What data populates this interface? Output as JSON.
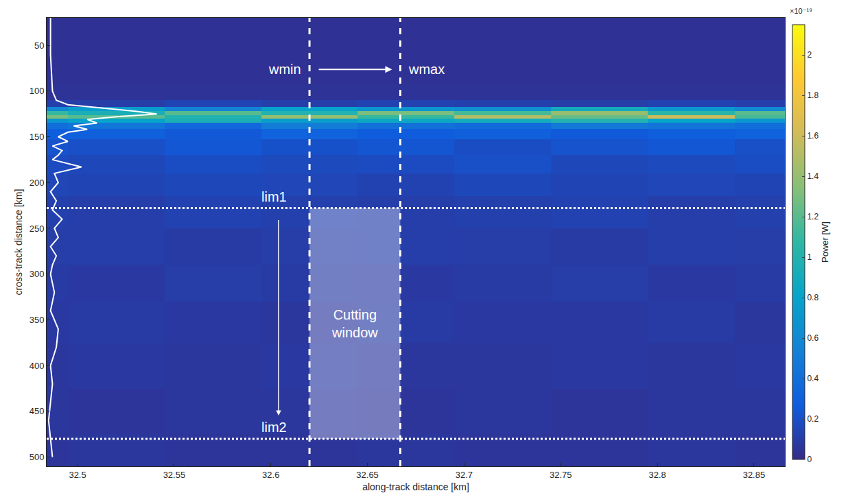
{
  "chart_data": {
    "type": "heatmap",
    "x_label": "along-track distance [km]",
    "y_label": "cross-track distance [km]",
    "xlim": [
      32.484,
      32.866
    ],
    "xticks": [
      32.5,
      32.55,
      32.6,
      32.65,
      32.7,
      32.75,
      32.8,
      32.85
    ],
    "ylim": [
      510,
      20
    ],
    "yticks": [
      50,
      100,
      150,
      200,
      250,
      300,
      350,
      400,
      450,
      500
    ],
    "grid": false,
    "x": [
      32.47,
      32.52,
      32.57,
      32.62,
      32.67,
      32.72,
      32.77,
      32.82,
      32.86
    ],
    "y": [
      20,
      50,
      80,
      105,
      115,
      120,
      124,
      128,
      132,
      137,
      145,
      160,
      180,
      200,
      230,
      270,
      310,
      350,
      400,
      450,
      500
    ],
    "z": [
      [
        4e-21,
        4e-21,
        4e-21,
        4e-21,
        4e-21,
        4e-21,
        4e-21,
        4e-21,
        4e-21
      ],
      [
        4e-21,
        4e-21,
        4e-21,
        4e-21,
        4e-21,
        4e-21,
        4e-21,
        4e-21,
        4e-21
      ],
      [
        4e-21,
        4e-21,
        4e-21,
        4e-21,
        4e-21,
        4e-21,
        4e-21,
        4e-21,
        4e-21
      ],
      [
        5e-21,
        5e-21,
        5e-21,
        5e-21,
        5e-21,
        5e-21,
        5e-21,
        5e-21,
        5e-21
      ],
      [
        1.2e-20,
        1e-20,
        1.4e-20,
        1.1e-20,
        1.3e-20,
        1.2e-20,
        1e-20,
        1.3e-20,
        1.1e-20
      ],
      [
        6e-20,
        7.5e-20,
        5.5e-20,
        8e-20,
        7e-20,
        6.5e-20,
        9e-20,
        7.2e-20,
        6e-20
      ],
      [
        1.1e-19,
        9.5e-20,
        1.2e-19,
        1e-19,
        1.3e-19,
        1.15e-19,
        1.4e-19,
        1.05e-19,
        1.2e-19
      ],
      [
        1.3e-19,
        1.2e-19,
        1e-19,
        1.4e-19,
        1.1e-19,
        1.5e-19,
        1.25e-19,
        1.6e-19,
        1.15e-19
      ],
      [
        7e-20,
        8e-20,
        9.5e-20,
        7.5e-20,
        8.5e-20,
        9e-20,
        1e-19,
        8e-20,
        7e-20
      ],
      [
        4e-20,
        4.5e-20,
        3.5e-20,
        5e-20,
        4.2e-20,
        3.8e-20,
        4.8e-20,
        4.4e-20,
        4e-20
      ],
      [
        2.8e-20,
        3e-20,
        2.5e-20,
        3.2e-20,
        2.7e-20,
        3e-20,
        2.6e-20,
        2.9e-20,
        3.1e-20
      ],
      [
        2.2e-20,
        2e-20,
        2.4e-20,
        2.1e-20,
        2.3e-20,
        1.9e-20,
        2.2e-20,
        2.4e-20,
        2e-20
      ],
      [
        1.8e-20,
        1.6e-20,
        1.9e-20,
        1.7e-20,
        1.8e-20,
        2e-20,
        1.6e-20,
        1.7e-20,
        1.9e-20
      ],
      [
        1.5e-20,
        1.4e-20,
        1.6e-20,
        1.5e-20,
        1.3e-20,
        1.6e-20,
        1.4e-20,
        1.5e-20,
        1.4e-20
      ],
      [
        1.2e-20,
        1.1e-20,
        1.3e-20,
        1.2e-20,
        1.1e-20,
        1.2e-20,
        1.3e-20,
        1.1e-20,
        1.2e-20
      ],
      [
        1e-20,
        1.1e-20,
        9e-21,
        1e-20,
        1.1e-20,
        1e-20,
        9e-21,
        1.1e-20,
        1e-20
      ],
      [
        9e-21,
        8e-21,
        1e-20,
        9e-21,
        8e-21,
        9e-21,
        1e-20,
        8e-21,
        9e-21
      ],
      [
        8e-21,
        9e-21,
        8e-21,
        7e-21,
        9e-21,
        8e-21,
        8e-21,
        9e-21,
        7e-21
      ],
      [
        7e-21,
        8e-21,
        7e-21,
        8e-21,
        7e-21,
        7e-21,
        8e-21,
        7e-21,
        8e-21
      ],
      [
        7e-21,
        6e-21,
        7e-21,
        7e-21,
        6e-21,
        7e-21,
        6e-21,
        7e-21,
        7e-21
      ],
      [
        6e-21,
        7e-21,
        6e-21,
        6e-21,
        7e-21,
        6e-21,
        6e-21,
        7e-21,
        6e-21
      ]
    ],
    "colorbar": {
      "title": "Power [W]",
      "multiplier": "×10⁻¹⁹",
      "range": [
        0,
        2.15e-19
      ],
      "ticks": [
        0,
        {
          "value": 2e-20,
          "label": "0.2"
        },
        {
          "value": 4e-20,
          "label": "0.4"
        },
        {
          "value": 6e-20,
          "label": "0.6"
        },
        {
          "value": 8e-20,
          "label": "0.8"
        },
        {
          "value": 1e-19,
          "label": "1"
        },
        {
          "value": 1.2e-19,
          "label": "1.2"
        },
        {
          "value": 1.4e-19,
          "label": "1.4"
        },
        {
          "value": 1.6e-19,
          "label": "1.6"
        },
        {
          "value": 1.8e-19,
          "label": "1.8"
        },
        {
          "value": 2e-19,
          "label": "2"
        }
      ]
    },
    "profile": {
      "color": "#ffffff",
      "line_style": "solid",
      "x": [
        32.486,
        32.486,
        32.487,
        32.489,
        32.495,
        32.51,
        32.53,
        32.541,
        32.52,
        32.505,
        32.51,
        32.498,
        32.505,
        32.495,
        32.49,
        32.495,
        32.487,
        32.492,
        32.49,
        32.487,
        32.502,
        32.488,
        32.49,
        32.486,
        32.489,
        32.487,
        32.492,
        32.488,
        32.49,
        32.486,
        32.489,
        32.487,
        32.486,
        32.488,
        32.486,
        32.49,
        32.489,
        32.486,
        32.487,
        32.486,
        32.485,
        32.486,
        32.487
      ],
      "y": [
        20,
        60,
        100,
        110,
        115,
        118,
        122,
        125,
        128,
        131,
        135,
        138,
        142,
        145,
        150,
        155,
        160,
        165,
        170,
        175,
        183,
        190,
        200,
        210,
        220,
        230,
        240,
        250,
        260,
        270,
        280,
        290,
        300,
        320,
        340,
        360,
        380,
        400,
        420,
        440,
        460,
        480,
        500
      ]
    },
    "window": {
      "wmin": {
        "value": 32.62,
        "label": "wmin"
      },
      "wmax": {
        "value": 32.667,
        "label": "wmax"
      },
      "lim1": {
        "value": 228,
        "label": "lim1"
      },
      "lim2": {
        "value": 480,
        "label": "lim2"
      },
      "label": "Cutting window"
    }
  }
}
